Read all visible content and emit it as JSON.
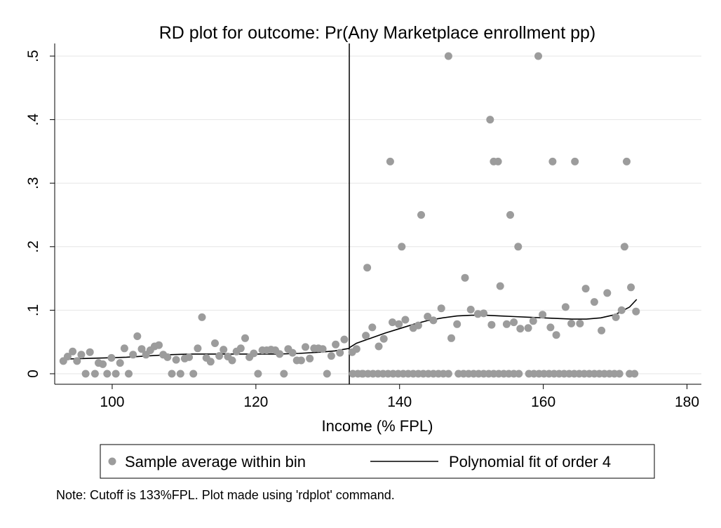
{
  "chart_data": {
    "type": "scatter",
    "title": "RD plot for outcome: Pr(Any Marketplace enrollment pp)",
    "xlabel": "Income (% FPL)",
    "ylabel": "",
    "xlim": [
      92,
      182
    ],
    "ylim": [
      0,
      0.5
    ],
    "x_ticks": [
      100,
      120,
      140,
      160,
      180
    ],
    "y_ticks": [
      0,
      0.1,
      0.2,
      0.3,
      0.4,
      0.5
    ],
    "y_tick_labels": [
      "0",
      ".1",
      ".2",
      ".3",
      ".4",
      ".5"
    ],
    "cutoff": 133,
    "grid": true,
    "legend_position": "bottom",
    "note": "Note: Cutoff is 133%FPL. Plot made using 'rdplot' command.",
    "colors": {
      "points": "#9c9c9c",
      "fit": "#000000",
      "cutoff_line": "#000000",
      "grid": "#e6e6e6"
    },
    "series": [
      {
        "name": "Sample average within bin",
        "kind": "scatter",
        "points": [
          [
            93.2,
            0.02
          ],
          [
            93.8,
            0.027
          ],
          [
            94.5,
            0.035
          ],
          [
            95.1,
            0.02
          ],
          [
            95.7,
            0.03
          ],
          [
            96.3,
            0.0
          ],
          [
            96.9,
            0.034
          ],
          [
            97.6,
            0.0
          ],
          [
            98.1,
            0.017
          ],
          [
            98.7,
            0.015
          ],
          [
            99.3,
            0.0
          ],
          [
            99.9,
            0.025
          ],
          [
            100.5,
            0.0
          ],
          [
            101.1,
            0.017
          ],
          [
            101.7,
            0.04
          ],
          [
            102.3,
            0.0
          ],
          [
            102.9,
            0.03
          ],
          [
            103.5,
            0.059
          ],
          [
            104.1,
            0.039
          ],
          [
            104.7,
            0.03
          ],
          [
            105.3,
            0.037
          ],
          [
            105.9,
            0.043
          ],
          [
            106.5,
            0.045
          ],
          [
            107.1,
            0.03
          ],
          [
            107.7,
            0.026
          ],
          [
            108.3,
            0.0
          ],
          [
            108.9,
            0.022
          ],
          [
            109.5,
            0.0
          ],
          [
            110.1,
            0.024
          ],
          [
            110.7,
            0.026
          ],
          [
            111.3,
            0.0
          ],
          [
            111.9,
            0.04
          ],
          [
            112.5,
            0.089
          ],
          [
            113.1,
            0.025
          ],
          [
            113.7,
            0.019
          ],
          [
            114.3,
            0.048
          ],
          [
            114.9,
            0.028
          ],
          [
            115.5,
            0.038
          ],
          [
            116.1,
            0.027
          ],
          [
            116.7,
            0.021
          ],
          [
            117.3,
            0.035
          ],
          [
            117.9,
            0.04
          ],
          [
            118.5,
            0.056
          ],
          [
            119.1,
            0.026
          ],
          [
            119.7,
            0.032
          ],
          [
            120.3,
            0.0
          ],
          [
            120.9,
            0.037
          ],
          [
            121.5,
            0.037
          ],
          [
            122.1,
            0.038
          ],
          [
            122.7,
            0.037
          ],
          [
            123.3,
            0.031
          ],
          [
            123.9,
            0.0
          ],
          [
            124.5,
            0.039
          ],
          [
            125.1,
            0.033
          ],
          [
            125.7,
            0.021
          ],
          [
            126.3,
            0.021
          ],
          [
            126.9,
            0.042
          ],
          [
            127.5,
            0.024
          ],
          [
            128.1,
            0.04
          ],
          [
            128.7,
            0.04
          ],
          [
            129.3,
            0.039
          ],
          [
            129.9,
            0.0
          ],
          [
            130.5,
            0.028
          ],
          [
            131.1,
            0.046
          ],
          [
            131.7,
            0.033
          ],
          [
            132.3,
            0.054
          ],
          [
            133.4,
            0.034
          ],
          [
            134.0,
            0.039
          ],
          [
            134.8,
            0.0
          ],
          [
            135.3,
            0.06
          ],
          [
            135.5,
            0.167
          ],
          [
            136.2,
            0.073
          ],
          [
            137.1,
            0.043
          ],
          [
            137.8,
            0.055
          ],
          [
            138.7,
            0.334
          ],
          [
            139.0,
            0.081
          ],
          [
            139.9,
            0.078
          ],
          [
            140.3,
            0.2
          ],
          [
            140.8,
            0.085
          ],
          [
            141.9,
            0.072
          ],
          [
            142.6,
            0.076
          ],
          [
            143.0,
            0.25
          ],
          [
            143.9,
            0.09
          ],
          [
            144.7,
            0.084
          ],
          [
            145.8,
            0.103
          ],
          [
            146.8,
            0.5
          ],
          [
            147.2,
            0.056
          ],
          [
            148.0,
            0.078
          ],
          [
            149.1,
            0.151
          ],
          [
            149.9,
            0.101
          ],
          [
            150.9,
            0.094
          ],
          [
            151.7,
            0.095
          ],
          [
            152.6,
            0.4
          ],
          [
            152.8,
            0.077
          ],
          [
            153.1,
            0.334
          ],
          [
            153.7,
            0.334
          ],
          [
            154.0,
            0.138
          ],
          [
            154.9,
            0.078
          ],
          [
            155.4,
            0.25
          ],
          [
            155.9,
            0.081
          ],
          [
            156.5,
            0.2
          ],
          [
            156.8,
            0.071
          ],
          [
            157.9,
            0.072
          ],
          [
            158.6,
            0.083
          ],
          [
            159.3,
            0.5
          ],
          [
            159.9,
            0.093
          ],
          [
            161.0,
            0.073
          ],
          [
            161.3,
            0.334
          ],
          [
            161.8,
            0.061
          ],
          [
            163.1,
            0.105
          ],
          [
            163.9,
            0.079
          ],
          [
            164.4,
            0.334
          ],
          [
            165.1,
            0.079
          ],
          [
            165.9,
            0.134
          ],
          [
            167.1,
            0.113
          ],
          [
            168.1,
            0.068
          ],
          [
            168.9,
            0.127
          ],
          [
            170.1,
            0.089
          ],
          [
            170.9,
            0.1
          ],
          [
            171.3,
            0.2
          ],
          [
            171.6,
            0.334
          ],
          [
            172.2,
            0.136
          ],
          [
            172.9,
            0.098
          ],
          [
            133.5,
            0.0
          ],
          [
            134.2,
            0.0
          ],
          [
            134.9,
            0.0
          ],
          [
            135.6,
            0.0
          ],
          [
            136.3,
            0.0
          ],
          [
            137.0,
            0.0
          ],
          [
            137.7,
            0.0
          ],
          [
            138.4,
            0.0
          ],
          [
            139.1,
            0.0
          ],
          [
            139.8,
            0.0
          ],
          [
            140.5,
            0.0
          ],
          [
            141.2,
            0.0
          ],
          [
            141.9,
            0.0
          ],
          [
            142.6,
            0.0
          ],
          [
            143.3,
            0.0
          ],
          [
            144.0,
            0.0
          ],
          [
            144.7,
            0.0
          ],
          [
            145.4,
            0.0
          ],
          [
            146.1,
            0.0
          ],
          [
            146.8,
            0.0
          ],
          [
            148.2,
            0.0
          ],
          [
            148.9,
            0.0
          ],
          [
            149.6,
            0.0
          ],
          [
            150.3,
            0.0
          ],
          [
            151.0,
            0.0
          ],
          [
            151.7,
            0.0
          ],
          [
            152.4,
            0.0
          ],
          [
            153.1,
            0.0
          ],
          [
            153.8,
            0.0
          ],
          [
            154.5,
            0.0
          ],
          [
            155.2,
            0.0
          ],
          [
            155.9,
            0.0
          ],
          [
            156.6,
            0.0
          ],
          [
            158.0,
            0.0
          ],
          [
            158.7,
            0.0
          ],
          [
            159.4,
            0.0
          ],
          [
            160.1,
            0.0
          ],
          [
            160.8,
            0.0
          ],
          [
            161.5,
            0.0
          ],
          [
            162.2,
            0.0
          ],
          [
            162.9,
            0.0
          ],
          [
            163.6,
            0.0
          ],
          [
            164.3,
            0.0
          ],
          [
            165.0,
            0.0
          ],
          [
            165.7,
            0.0
          ],
          [
            166.4,
            0.0
          ],
          [
            167.1,
            0.0
          ],
          [
            167.8,
            0.0
          ],
          [
            168.5,
            0.0
          ],
          [
            169.2,
            0.0
          ],
          [
            169.9,
            0.0
          ],
          [
            170.6,
            0.0
          ],
          [
            172.0,
            0.0
          ],
          [
            172.7,
            0.0
          ]
        ]
      },
      {
        "name": "Polynomial fit of order 4",
        "kind": "line",
        "points": [
          [
            93,
            0.023
          ],
          [
            96,
            0.024
          ],
          [
            99,
            0.025
          ],
          [
            102,
            0.026
          ],
          [
            105,
            0.028
          ],
          [
            108,
            0.03
          ],
          [
            111,
            0.031
          ],
          [
            114,
            0.031
          ],
          [
            117,
            0.031
          ],
          [
            120,
            0.031
          ],
          [
            123,
            0.031
          ],
          [
            126,
            0.032
          ],
          [
            129,
            0.034
          ],
          [
            131,
            0.036
          ],
          [
            133,
            0.04
          ],
          [
            133,
            0.041
          ],
          [
            134,
            0.048
          ],
          [
            136,
            0.056
          ],
          [
            138,
            0.064
          ],
          [
            140,
            0.071
          ],
          [
            142,
            0.078
          ],
          [
            144,
            0.084
          ],
          [
            146,
            0.088
          ],
          [
            148,
            0.091
          ],
          [
            150,
            0.092
          ],
          [
            152,
            0.092
          ],
          [
            154,
            0.091
          ],
          [
            156,
            0.09
          ],
          [
            158,
            0.089
          ],
          [
            160,
            0.088
          ],
          [
            162,
            0.087
          ],
          [
            164,
            0.086
          ],
          [
            166,
            0.086
          ],
          [
            168,
            0.088
          ],
          [
            170,
            0.093
          ],
          [
            172,
            0.105
          ],
          [
            173,
            0.117
          ]
        ]
      }
    ]
  }
}
